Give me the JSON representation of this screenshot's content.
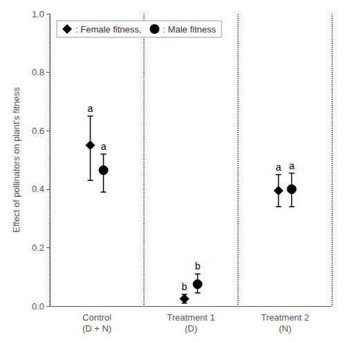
{
  "chart_data": {
    "type": "scatter",
    "categories": [
      "Control\n(D + N)",
      "Treatment 1\n(D)",
      "Treatment 2\n(N)"
    ],
    "ylabel": "Effect of pollinators on plant's fitness",
    "ylim": [
      0.0,
      1.0
    ],
    "yticks": [
      {
        "value": 0.0,
        "label": "0.0"
      },
      0.2,
      0.4,
      0.6,
      0.8,
      {
        "value": 1.0,
        "label": "1.0"
      }
    ],
    "grid": "x",
    "legend": "upper left",
    "series": [
      {
        "name": ": Female fitness,",
        "color": "#000000",
        "marker": "diamond",
        "values": [
          0.55,
          0.025,
          0.395
        ],
        "error_upper": [
          0.1,
          0.015,
          0.055
        ],
        "error_lower": [
          0.12,
          0.015,
          0.055
        ],
        "letters": [
          "a",
          "b",
          "a"
        ]
      },
      {
        "name": ": Male fitness",
        "color": "#000000",
        "marker": "circle",
        "values": [
          0.465,
          0.075,
          0.4
        ],
        "error_upper": [
          0.055,
          0.035,
          0.055
        ],
        "error_lower": [
          0.075,
          0.03,
          0.06
        ],
        "letters": [
          "a",
          "b",
          "a"
        ]
      }
    ]
  }
}
